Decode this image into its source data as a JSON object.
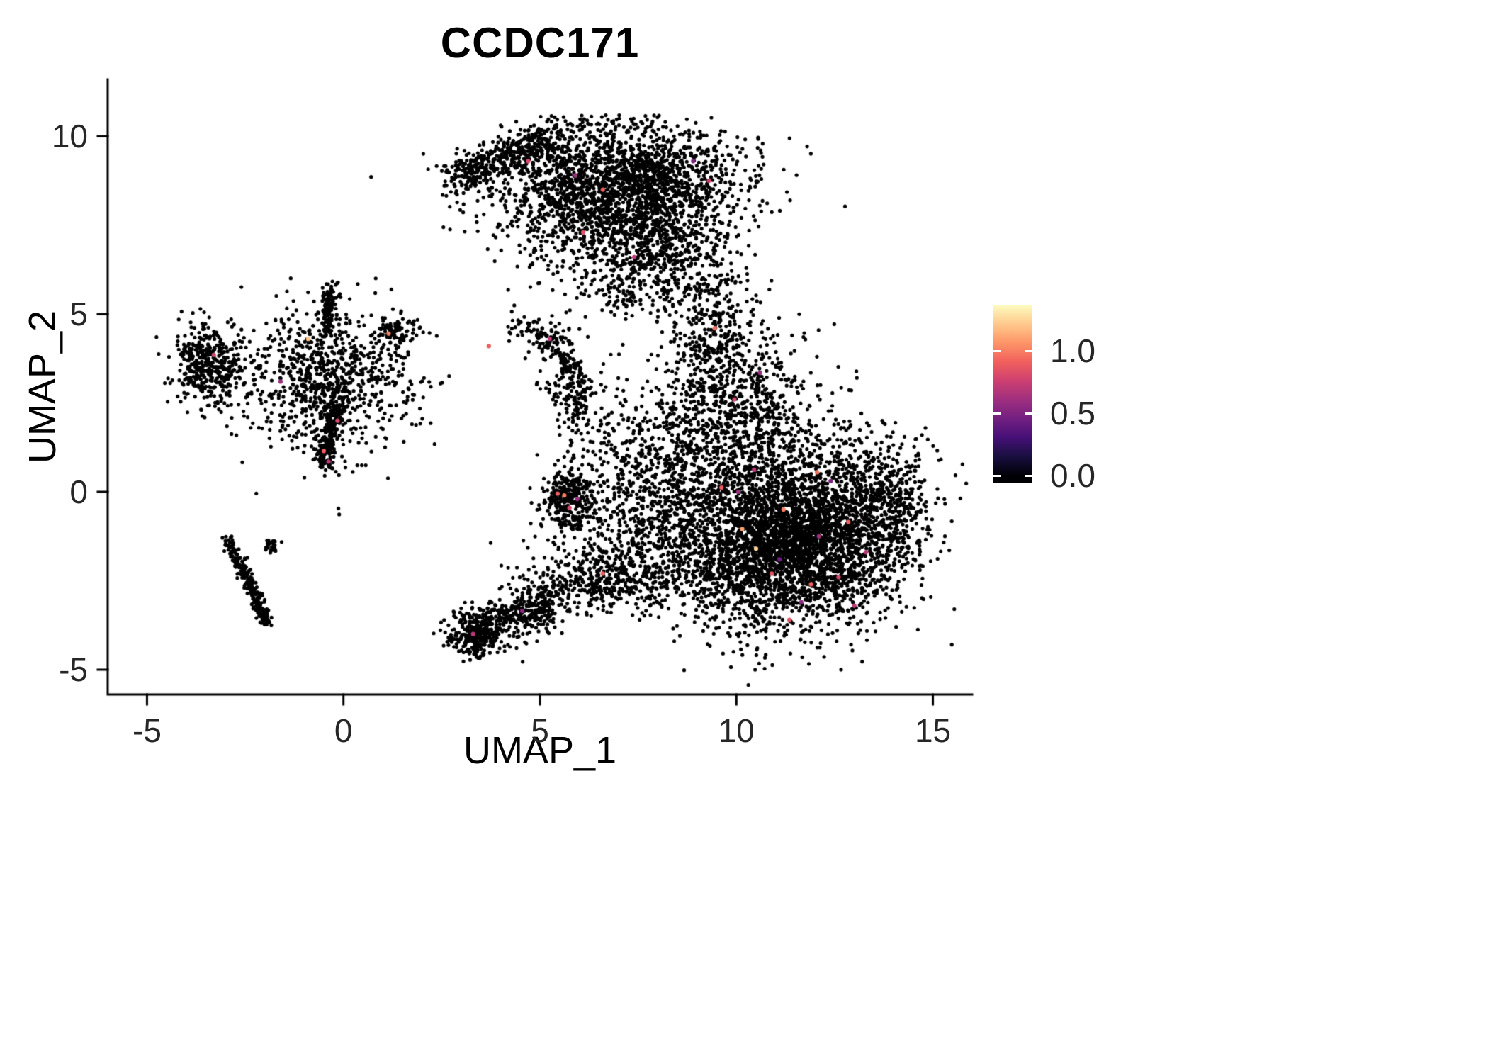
{
  "chart_data": {
    "type": "scatter",
    "title": "CCDC171",
    "xlabel": "UMAP_1",
    "ylabel": "UMAP_2",
    "xlim": [
      -6.0,
      16.0
    ],
    "ylim": [
      -5.7,
      11.6
    ],
    "grid": false,
    "point_color": "#000000",
    "x_ticks": [
      {
        "v": -5,
        "label": "-5"
      },
      {
        "v": 0,
        "label": "0"
      },
      {
        "v": 5,
        "label": "5"
      },
      {
        "v": 10,
        "label": "10"
      },
      {
        "v": 15,
        "label": "15"
      }
    ],
    "y_ticks": [
      {
        "v": 10,
        "label": "10"
      },
      {
        "v": 5,
        "label": "5"
      },
      {
        "v": 0,
        "label": "0"
      },
      {
        "v": -5,
        "label": "-5"
      }
    ],
    "colorbar": {
      "position": "right",
      "domain": [
        -0.06,
        1.37
      ],
      "cmap_max": 1.37,
      "stops": [
        "#000004",
        "#180f3e",
        "#451077",
        "#721f81",
        "#9f2f7f",
        "#cd4071",
        "#f1605d",
        "#fd9567",
        "#feca8d",
        "#fcfdbf"
      ],
      "ticks": [
        {
          "v": 1.0,
          "label": "1.0"
        },
        {
          "v": 0.5,
          "label": "0.5"
        },
        {
          "v": 0.0,
          "label": "0.0"
        }
      ]
    },
    "note": "UMAP feature plot; ~13,000 cells approximated by the cluster distributions below; nearly all cells at expression 0 (black), sparse cells with expression > 0 colored by magma scale.",
    "clusters": [
      {
        "name": "top-main",
        "type": "gauss",
        "cx": 7.0,
        "cy": 8.4,
        "sx": 1.5,
        "sy": 1.05,
        "n": 2600
      },
      {
        "name": "top-left-arm",
        "type": "line",
        "x1": 2.75,
        "y1": 8.75,
        "x2": 5.3,
        "y2": 9.95,
        "sd": 0.27,
        "n": 430
      },
      {
        "name": "top-lower-tail",
        "type": "gauss",
        "cx": 8.0,
        "cy": 6.6,
        "sx": 0.8,
        "sy": 0.8,
        "n": 330
      },
      {
        "name": "neck",
        "type": "gauss",
        "cx": 9.35,
        "cy": 4.6,
        "sx": 0.55,
        "sy": 1.15,
        "n": 380
      },
      {
        "name": "right-upper",
        "type": "gauss",
        "cx": 10.3,
        "cy": 2.1,
        "sx": 0.95,
        "sy": 1.1,
        "n": 730
      },
      {
        "name": "right-main-a",
        "type": "gauss",
        "cx": 11.0,
        "cy": -1.8,
        "sx": 1.5,
        "sy": 1.05,
        "n": 2400
      },
      {
        "name": "right-main-b",
        "type": "gauss",
        "cx": 12.0,
        "cy": -0.6,
        "sx": 1.3,
        "sy": 1.15,
        "n": 1800
      },
      {
        "name": "right-tip",
        "type": "gauss",
        "cx": 13.9,
        "cy": -0.35,
        "sx": 0.5,
        "sy": 0.85,
        "n": 240
      },
      {
        "name": "right-west-scatter",
        "type": "gauss",
        "cx": 8.5,
        "cy": 0.3,
        "sx": 0.9,
        "sy": 1.4,
        "n": 560
      },
      {
        "name": "mid-clump",
        "type": "gauss",
        "cx": 5.75,
        "cy": -0.25,
        "sx": 0.33,
        "sy": 0.5,
        "n": 320
      },
      {
        "name": "mid-band",
        "type": "gauss",
        "cx": 6.5,
        "cy": -2.5,
        "sx": 1.0,
        "sy": 0.45,
        "n": 430
      },
      {
        "name": "bottom-left-wedge",
        "type": "line",
        "x1": 3.0,
        "y1": -4.1,
        "x2": 5.4,
        "y2": -3.05,
        "sd": 0.32,
        "n": 470
      },
      {
        "name": "bottom-left-knot",
        "type": "gauss",
        "cx": 3.3,
        "cy": -4.0,
        "sx": 0.35,
        "sy": 0.28,
        "n": 150
      },
      {
        "name": "between-scatter",
        "type": "gauss",
        "cx": 7.4,
        "cy": -0.9,
        "sx": 0.8,
        "sy": 0.9,
        "n": 300
      },
      {
        "name": "left-mid-main",
        "type": "gauss",
        "cx": -0.45,
        "cy": 3.1,
        "sx": 1.05,
        "sy": 1.0,
        "n": 850
      },
      {
        "name": "left-mid-streak-down",
        "type": "line",
        "x1": -0.55,
        "y1": 0.75,
        "x2": -0.2,
        "y2": 2.4,
        "sd": 0.12,
        "n": 230
      },
      {
        "name": "left-mid-streak-up",
        "type": "line",
        "x1": -0.45,
        "y1": 4.4,
        "x2": -0.3,
        "y2": 5.85,
        "sd": 0.1,
        "n": 110
      },
      {
        "name": "left-mid-east-arm",
        "type": "gauss",
        "cx": 1.3,
        "cy": 4.45,
        "sx": 0.3,
        "sy": 0.25,
        "n": 90
      },
      {
        "name": "far-left",
        "type": "gauss",
        "cx": -3.4,
        "cy": 3.6,
        "sx": 0.45,
        "sy": 0.55,
        "n": 430
      },
      {
        "name": "center-small-a",
        "type": "gauss",
        "cx": 5.3,
        "cy": 4.3,
        "sx": 0.3,
        "sy": 0.25,
        "n": 80
      },
      {
        "name": "center-small-b",
        "type": "gauss",
        "cx": 5.8,
        "cy": 2.95,
        "sx": 0.3,
        "sy": 0.5,
        "n": 150
      },
      {
        "name": "center-small-tail",
        "type": "line",
        "x1": 5.45,
        "y1": 4.0,
        "x2": 5.75,
        "y2": 3.45,
        "sd": 0.1,
        "n": 40
      },
      {
        "name": "center-small-c",
        "type": "gauss",
        "cx": 4.6,
        "cy": 4.6,
        "sx": 0.3,
        "sy": 0.2,
        "n": 25
      },
      {
        "name": "bl-streak-1",
        "type": "line",
        "x1": -2.95,
        "y1": -1.35,
        "x2": -2.35,
        "y2": -2.7,
        "sd": 0.08,
        "n": 140
      },
      {
        "name": "bl-streak-2",
        "type": "line",
        "x1": -2.35,
        "y1": -2.7,
        "x2": -1.95,
        "y2": -3.75,
        "sd": 0.08,
        "n": 120
      },
      {
        "name": "bl-branch",
        "type": "gauss",
        "cx": -1.82,
        "cy": -1.5,
        "sx": 0.12,
        "sy": 0.12,
        "n": 25
      },
      {
        "name": "sparse-mid-upper",
        "type": "gauss",
        "cx": 6.8,
        "cy": 1.6,
        "sx": 0.55,
        "sy": 0.8,
        "n": 110
      },
      {
        "name": "sparse-under-top",
        "type": "gauss",
        "cx": 7.0,
        "cy": 5.6,
        "sx": 0.5,
        "sy": 0.35,
        "n": 70
      }
    ],
    "highlight_points": [
      {
        "x": 9.62,
        "y": 0.12,
        "v": 0.9
      },
      {
        "x": 10.45,
        "y": 0.62,
        "v": 0.7
      },
      {
        "x": 11.2,
        "y": -0.5,
        "v": 1.0
      },
      {
        "x": 12.1,
        "y": -1.25,
        "v": 0.6
      },
      {
        "x": 10.9,
        "y": -2.3,
        "v": 0.85
      },
      {
        "x": 11.65,
        "y": -3.1,
        "v": 0.55
      },
      {
        "x": 12.85,
        "y": -0.85,
        "v": 0.9
      },
      {
        "x": 13.3,
        "y": -1.7,
        "v": 0.7
      },
      {
        "x": 10.15,
        "y": -1.05,
        "v": 1.1
      },
      {
        "x": 9.95,
        "y": 2.6,
        "v": 0.8
      },
      {
        "x": 10.6,
        "y": 3.35,
        "v": 0.6
      },
      {
        "x": 9.45,
        "y": 4.6,
        "v": 0.95
      },
      {
        "x": 12.4,
        "y": 0.3,
        "v": 0.5
      },
      {
        "x": 11.9,
        "y": -2.6,
        "v": 0.9
      },
      {
        "x": 10.5,
        "y": -1.6,
        "v": 1.25
      },
      {
        "x": 11.1,
        "y": -1.9,
        "v": 0.45
      },
      {
        "x": 12.6,
        "y": -2.4,
        "v": 0.8
      },
      {
        "x": 10.05,
        "y": 0.0,
        "v": 0.6
      },
      {
        "x": 5.62,
        "y": -0.1,
        "v": 1.0
      },
      {
        "x": 5.75,
        "y": -0.45,
        "v": 0.8
      },
      {
        "x": 5.95,
        "y": -0.2,
        "v": 0.6
      },
      {
        "x": 6.6,
        "y": -2.3,
        "v": 0.9
      },
      {
        "x": 3.3,
        "y": -4.0,
        "v": 0.7
      },
      {
        "x": 4.55,
        "y": -3.35,
        "v": 0.55
      },
      {
        "x": 5.45,
        "y": -0.05,
        "v": 0.9
      },
      {
        "x": -0.9,
        "y": 4.3,
        "v": 1.2
      },
      {
        "x": 1.15,
        "y": 4.45,
        "v": 1.0
      },
      {
        "x": -0.15,
        "y": 2.0,
        "v": 0.8
      },
      {
        "x": -0.5,
        "y": 1.15,
        "v": 0.9
      },
      {
        "x": -0.38,
        "y": 0.85,
        "v": 0.7
      },
      {
        "x": -1.6,
        "y": 3.1,
        "v": 0.6
      },
      {
        "x": -3.3,
        "y": 3.85,
        "v": 0.8
      },
      {
        "x": 3.7,
        "y": 4.1,
        "v": 0.9
      },
      {
        "x": 5.25,
        "y": 4.3,
        "v": 0.7
      },
      {
        "x": 4.7,
        "y": 9.3,
        "v": 0.8
      },
      {
        "x": 5.9,
        "y": 8.9,
        "v": 0.6
      },
      {
        "x": 6.6,
        "y": 8.5,
        "v": 0.9
      },
      {
        "x": 7.4,
        "y": 6.6,
        "v": 0.7
      },
      {
        "x": 8.9,
        "y": 9.3,
        "v": 0.5
      },
      {
        "x": 6.1,
        "y": 7.3,
        "v": 0.85
      },
      {
        "x": 9.3,
        "y": 8.75,
        "v": 0.75
      },
      {
        "x": 12.05,
        "y": 0.55,
        "v": 0.95
      },
      {
        "x": 13.0,
        "y": -3.2,
        "v": 0.7
      },
      {
        "x": 11.35,
        "y": -3.6,
        "v": 0.85
      }
    ]
  }
}
